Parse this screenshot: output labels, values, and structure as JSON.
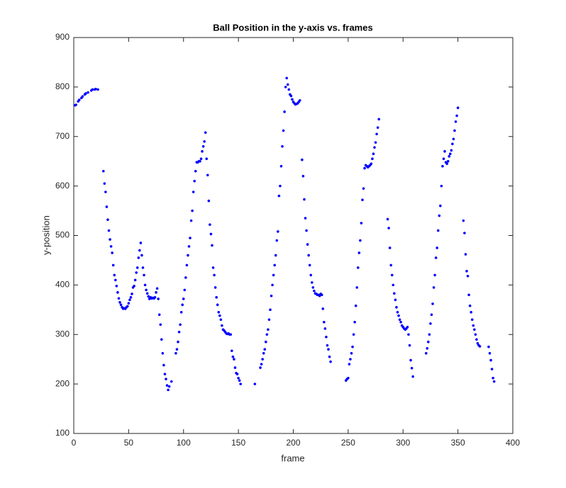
{
  "chart_data": {
    "type": "scatter",
    "title": "Ball Position in the y-axis vs. frames",
    "x_label": "frame",
    "y_label": "y-position",
    "color": "#0000ff",
    "xlim": [
      0,
      400
    ],
    "xticks": [
      0,
      50,
      100,
      150,
      200,
      250,
      300,
      350,
      400
    ],
    "ylim": [
      100,
      900
    ],
    "yticks": [
      100,
      200,
      300,
      400,
      500,
      600,
      700,
      800,
      900
    ],
    "x": [
      1,
      2,
      4,
      5,
      7,
      8,
      10,
      11,
      13,
      16,
      17,
      19,
      20,
      22,
      27,
      28,
      29,
      30,
      31,
      32,
      33,
      34,
      35,
      36,
      37,
      38,
      39,
      40,
      41,
      42,
      43,
      44,
      45,
      46,
      47,
      48,
      49,
      50,
      51,
      52,
      53,
      54,
      55,
      56,
      57,
      58,
      59,
      60,
      61,
      62,
      63,
      64,
      65,
      66,
      67,
      68,
      69,
      70,
      71,
      72,
      73,
      74,
      75,
      76,
      77,
      78,
      79,
      80,
      81,
      82,
      83,
      84,
      85,
      86,
      87,
      89,
      93,
      94,
      95,
      96,
      97,
      98,
      99,
      100,
      101,
      102,
      103,
      104,
      105,
      106,
      107,
      108,
      109,
      110,
      111,
      112,
      113,
      114,
      115,
      116,
      117,
      118,
      119,
      120,
      121,
      122,
      123,
      124,
      125,
      126,
      127,
      128,
      129,
      130,
      131,
      132,
      133,
      134,
      135,
      136,
      137,
      138,
      139,
      140,
      141,
      142,
      143,
      144,
      145,
      146,
      147,
      148,
      149,
      150,
      151,
      152,
      165,
      170,
      171,
      172,
      173,
      174,
      175,
      176,
      177,
      178,
      179,
      180,
      181,
      182,
      183,
      184,
      185,
      186,
      187,
      188,
      189,
      190,
      191,
      192,
      193,
      194,
      195,
      196,
      197,
      198,
      199,
      200,
      201,
      202,
      203,
      204,
      205,
      206,
      208,
      209,
      210,
      211,
      212,
      213,
      214,
      215,
      216,
      217,
      218,
      219,
      220,
      221,
      222,
      223,
      224,
      225,
      226,
      227,
      228,
      229,
      230,
      231,
      232,
      233,
      234,
      248,
      249,
      250,
      251,
      252,
      253,
      254,
      255,
      256,
      257,
      258,
      259,
      260,
      261,
      262,
      263,
      264,
      265,
      266,
      267,
      268,
      269,
      270,
      271,
      272,
      273,
      274,
      275,
      276,
      277,
      278,
      286,
      287,
      288,
      289,
      290,
      291,
      292,
      293,
      294,
      295,
      296,
      297,
      298,
      299,
      300,
      301,
      302,
      303,
      304,
      305,
      306,
      307,
      308,
      309,
      321,
      322,
      323,
      324,
      325,
      326,
      327,
      328,
      329,
      330,
      331,
      332,
      333,
      334,
      335,
      336,
      337,
      338,
      339,
      340,
      341,
      342,
      343,
      344,
      345,
      346,
      347,
      348,
      349,
      350,
      355,
      356,
      357,
      358,
      359,
      360,
      361,
      362,
      363,
      364,
      365,
      366,
      367,
      368,
      369,
      370,
      378,
      379,
      380,
      381,
      382,
      383
    ],
    "y": [
      763,
      764,
      771,
      774,
      778,
      781,
      785,
      787,
      789,
      793,
      795,
      795,
      796,
      795,
      630,
      605,
      588,
      558,
      532,
      510,
      492,
      478,
      465,
      440,
      420,
      410,
      398,
      385,
      373,
      365,
      360,
      355,
      352,
      353,
      352,
      355,
      357,
      363,
      370,
      375,
      382,
      395,
      398,
      410,
      425,
      435,
      455,
      470,
      485,
      460,
      435,
      420,
      400,
      390,
      383,
      377,
      372,
      375,
      373,
      374,
      373,
      375,
      385,
      393,
      372,
      340,
      320,
      290,
      262,
      238,
      220,
      210,
      197,
      188,
      195,
      205,
      262,
      270,
      285,
      305,
      320,
      345,
      360,
      372,
      390,
      415,
      440,
      460,
      478,
      495,
      530,
      550,
      588,
      610,
      630,
      648,
      648,
      650,
      650,
      655,
      670,
      680,
      690,
      708,
      655,
      622,
      570,
      522,
      503,
      480,
      435,
      420,
      395,
      375,
      360,
      345,
      338,
      330,
      318,
      310,
      308,
      305,
      302,
      301,
      302,
      300,
      300,
      267,
      255,
      250,
      233,
      222,
      220,
      212,
      207,
      200,
      200,
      233,
      240,
      250,
      262,
      270,
      285,
      300,
      310,
      330,
      350,
      378,
      400,
      420,
      440,
      460,
      490,
      508,
      580,
      600,
      640,
      680,
      712,
      750,
      800,
      818,
      805,
      795,
      785,
      782,
      775,
      770,
      767,
      765,
      766,
      767,
      770,
      773,
      653,
      620,
      573,
      535,
      510,
      482,
      460,
      440,
      420,
      405,
      395,
      388,
      383,
      382,
      380,
      380,
      378,
      382,
      380,
      352,
      325,
      312,
      295,
      278,
      270,
      255,
      245,
      207,
      210,
      212,
      240,
      250,
      262,
      275,
      300,
      325,
      358,
      395,
      435,
      465,
      490,
      525,
      572,
      595,
      636,
      642,
      640,
      638,
      640,
      642,
      645,
      655,
      665,
      678,
      688,
      705,
      718,
      735,
      533,
      515,
      475,
      440,
      420,
      400,
      383,
      370,
      355,
      345,
      338,
      330,
      325,
      318,
      315,
      312,
      310,
      312,
      315,
      300,
      278,
      248,
      232,
      215,
      262,
      272,
      285,
      300,
      322,
      340,
      362,
      395,
      420,
      455,
      475,
      510,
      540,
      560,
      600,
      640,
      655,
      670,
      648,
      645,
      650,
      660,
      665,
      672,
      685,
      695,
      712,
      730,
      742,
      758,
      530,
      505,
      462,
      428,
      418,
      380,
      358,
      345,
      330,
      318,
      310,
      300,
      290,
      282,
      278,
      276,
      275,
      262,
      248,
      230,
      212,
      205
    ]
  }
}
